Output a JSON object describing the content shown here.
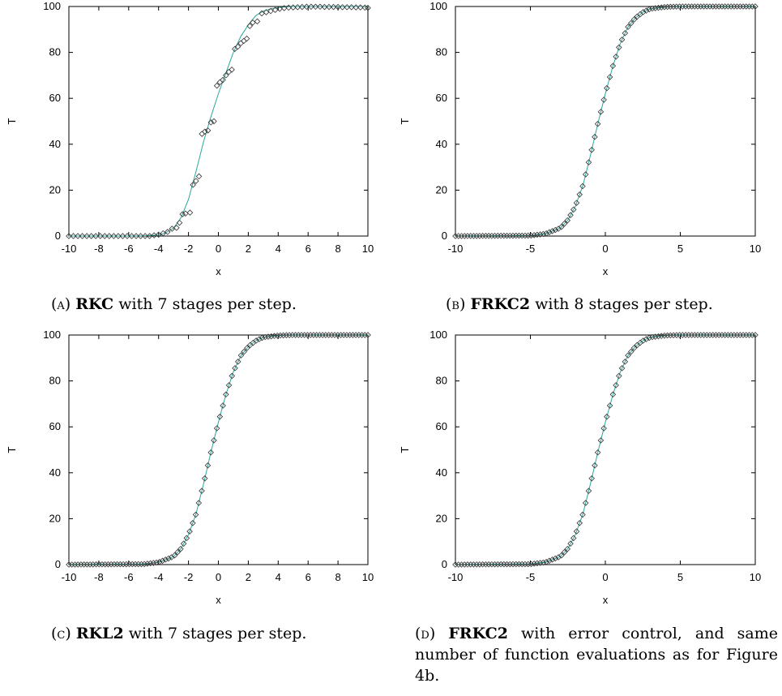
{
  "colors": {
    "curve": "#2aa89a",
    "marker": "#333333",
    "axis": "#000000"
  },
  "panels": [
    {
      "id": "a",
      "caption": {
        "label": "(a)",
        "method": "RKC",
        "text": "with 7 stages per step."
      },
      "chart_data": {
        "type": "scatter",
        "xlabel": "x",
        "ylabel": "T",
        "xlim": [
          -10,
          10
        ],
        "ylim": [
          0,
          100
        ],
        "xticks": [
          -10,
          -8,
          -6,
          -4,
          -2,
          0,
          2,
          4,
          6,
          8,
          10
        ],
        "yticks": [
          0,
          20,
          40,
          60,
          80,
          100
        ],
        "series": [
          {
            "kind": "line",
            "x": [
              -10,
              -9,
              -8,
              -7,
              -6,
              -5,
              -4,
              -3.5,
              -3,
              -2.5,
              -2,
              -1.5,
              -1,
              -0.5,
              0,
              0.5,
              1,
              1.5,
              2,
              2.5,
              3,
              3.5,
              4,
              5,
              6,
              7,
              8,
              9,
              10
            ],
            "y": [
              0,
              0,
              0,
              0,
              0,
              0.1,
              0.5,
              1.5,
              3.5,
              8,
              16,
              28,
              41,
              52,
              62,
              71,
              80,
              87,
              92,
              96,
              98,
              99,
              99.6,
              100,
              100,
              100,
              100,
              100,
              100
            ]
          },
          {
            "kind": "markers",
            "x": [
              -10,
              -9.7,
              -9.4,
              -9.1,
              -8.8,
              -8.5,
              -8.2,
              -7.9,
              -7.6,
              -7.3,
              -7,
              -6.7,
              -6.4,
              -6.1,
              -5.8,
              -5.5,
              -5.2,
              -4.9,
              -4.6,
              -4.3,
              -4,
              -3.7,
              -3.4,
              -3.1,
              -2.8,
              -2.6,
              -2.4,
              -2.2,
              -1.9,
              -1.7,
              -1.5,
              -1.3,
              -1.1,
              -0.9,
              -0.7,
              -0.5,
              -0.3,
              -0.1,
              0.1,
              0.3,
              0.5,
              0.7,
              0.9,
              1.1,
              1.3,
              1.5,
              1.7,
              1.9,
              2.1,
              2.3,
              2.6,
              2.9,
              3.2,
              3.5,
              3.8,
              4.1,
              4.4,
              4.7,
              5,
              5.3,
              5.6,
              5.9,
              6.2,
              6.5,
              6.8,
              7.1,
              7.4,
              7.7,
              8,
              8.3,
              8.6,
              8.9,
              9.2,
              9.5,
              9.8,
              10
            ],
            "y": [
              0,
              0,
              0,
              0,
              0,
              0,
              0,
              0,
              0,
              0,
              0,
              0,
              0,
              0,
              0,
              0,
              0,
              0,
              0,
              0.3,
              0.6,
              1.2,
              1.8,
              3.2,
              3.6,
              5.8,
              9.5,
              9.8,
              10.2,
              22.3,
              24,
              26,
              44.5,
              45.5,
              46,
              49.5,
              50,
              65.5,
              67,
              68,
              70,
              71.5,
              72.5,
              81.5,
              82.5,
              84,
              85,
              86,
              91.5,
              93,
              93.5,
              97,
              97.5,
              98,
              98.5,
              99,
              99.3,
              99.5,
              99.6,
              99.7,
              99.8,
              99.9,
              99.9,
              99.9,
              99.9,
              99.8,
              99.8,
              99.8,
              99.8,
              99.7,
              99.7,
              99.7,
              99.6,
              99.6,
              99.5,
              99.4
            ]
          }
        ]
      }
    },
    {
      "id": "b",
      "caption": {
        "label": "(b)",
        "method": "FRKC2",
        "text": "with 8 stages per step."
      },
      "chart_data": {
        "type": "scatter",
        "xlabel": "x",
        "ylabel": "T",
        "xlim": [
          -10,
          10
        ],
        "ylim": [
          0,
          100
        ],
        "xticks": [
          -10,
          -5,
          0,
          5,
          10
        ],
        "yticks": [
          0,
          20,
          40,
          60,
          80,
          100
        ],
        "sigmoid": {
          "center": -0.1,
          "scale": 1.0
        },
        "series": [
          {
            "kind": "line",
            "x": [
              -10,
              -5,
              -4,
              -3,
              -2.5,
              -2,
              -1.5,
              -1,
              -0.5,
              0,
              0.5,
              1,
              1.5,
              2,
              2.5,
              3,
              4,
              5,
              10
            ],
            "y": [
              0,
              0.2,
              1,
              3.5,
              7,
              13,
              22,
              35,
              49,
              62,
              74,
              84,
              91,
              95,
              97.5,
              99,
              99.8,
              100,
              100
            ]
          },
          {
            "kind": "markers",
            "count": 100,
            "from": -10,
            "to": 10,
            "follow": "line"
          }
        ]
      }
    },
    {
      "id": "c",
      "caption": {
        "label": "(c)",
        "method": "RKL2",
        "text": "with 7 stages per step."
      },
      "chart_data": {
        "type": "scatter",
        "xlabel": "x",
        "ylabel": "T",
        "xlim": [
          -10,
          10
        ],
        "ylim": [
          0,
          100
        ],
        "xticks": [
          -10,
          -8,
          -6,
          -4,
          -2,
          0,
          2,
          4,
          6,
          8,
          10
        ],
        "yticks": [
          0,
          20,
          40,
          60,
          80,
          100
        ],
        "series": [
          {
            "kind": "line",
            "x": [
              -10,
              -5,
              -4,
              -3,
              -2.5,
              -2,
              -1.5,
              -1,
              -0.5,
              0,
              0.5,
              1,
              1.5,
              2,
              2.5,
              3,
              4,
              5,
              10
            ],
            "y": [
              0,
              0.2,
              1,
              3.5,
              7,
              13,
              22,
              35,
              49,
              62,
              74,
              84,
              91,
              95,
              97.5,
              99,
              99.8,
              100,
              100
            ]
          },
          {
            "kind": "markers",
            "count": 100,
            "from": -10,
            "to": 10,
            "follow": "line"
          }
        ]
      }
    },
    {
      "id": "d",
      "caption": {
        "label": "(d)",
        "method": "FRKC2",
        "text": "with error control, and same number of function evaluations as for Figure 4b."
      },
      "chart_data": {
        "type": "scatter",
        "xlabel": "x",
        "ylabel": "T",
        "xlim": [
          -10,
          10
        ],
        "ylim": [
          0,
          100
        ],
        "xticks": [
          -10,
          -5,
          0,
          5,
          10
        ],
        "yticks": [
          0,
          20,
          40,
          60,
          80,
          100
        ],
        "series": [
          {
            "kind": "line",
            "x": [
              -10,
              -5,
              -4,
              -3,
              -2.5,
              -2,
              -1.5,
              -1,
              -0.5,
              0,
              0.5,
              1,
              1.5,
              2,
              2.5,
              3,
              4,
              5,
              10
            ],
            "y": [
              0,
              0.2,
              1,
              3.5,
              7,
              13,
              22,
              35,
              49,
              62,
              74,
              84,
              91,
              95,
              97.5,
              99,
              99.8,
              100,
              100
            ]
          },
          {
            "kind": "markers",
            "count": 100,
            "from": -10,
            "to": 10,
            "follow": "line"
          }
        ]
      }
    }
  ]
}
